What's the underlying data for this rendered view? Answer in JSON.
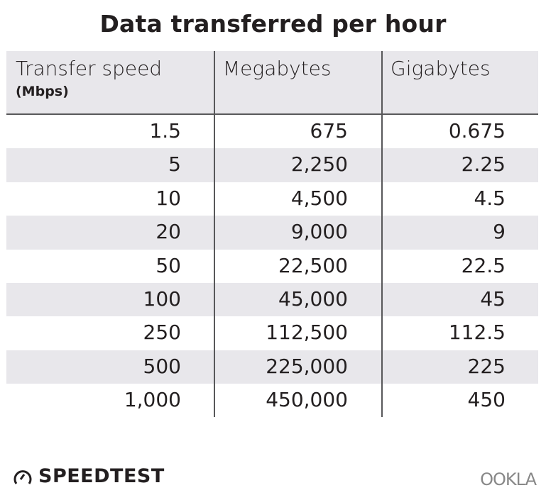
{
  "title": "Data transferred per hour",
  "chart_data": {
    "type": "table",
    "title": "Data transferred per hour",
    "columns": [
      "Transfer speed",
      "Megabytes",
      "Gigabytes"
    ],
    "column_subtitle": "(Mbps)",
    "rows": [
      [
        "1.5",
        "675",
        "0.675"
      ],
      [
        "5",
        "2,250",
        "2.25"
      ],
      [
        "10",
        "4,500",
        "4.5"
      ],
      [
        "20",
        "9,000",
        "9"
      ],
      [
        "50",
        "22,500",
        "22.5"
      ],
      [
        "100",
        "45,000",
        "45"
      ],
      [
        "250",
        "112,500",
        "112.5"
      ],
      [
        "500",
        "225,000",
        "225"
      ],
      [
        "1,000",
        "450,000",
        "450"
      ]
    ],
    "colors": {
      "stripe": "#e8e7eb",
      "rule": "#58585a",
      "text": "#231f20"
    }
  },
  "footer": {
    "left_logo": "SPEEDTEST",
    "right_logo": "OOKLA",
    "left_icon": "speedometer-icon"
  }
}
